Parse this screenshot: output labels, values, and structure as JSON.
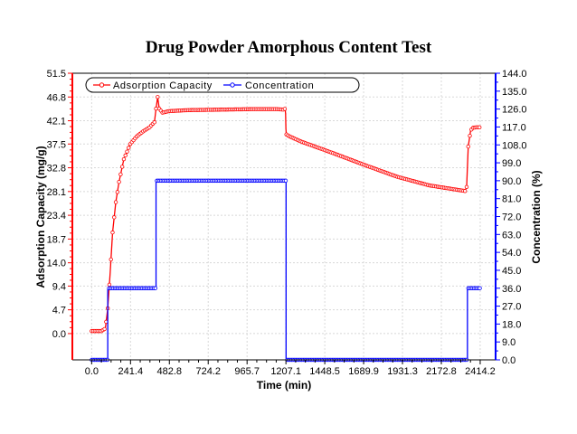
{
  "chart_data": {
    "type": "line",
    "title": "Drug Powder Amorphous Content Test",
    "xlabel": "Time (min)",
    "ylabel": "Adsorption Capacity (mg/g)",
    "y2label": "Concentration (%)",
    "x_ticks": [
      "0.0",
      "241.4",
      "482.8",
      "724.2",
      "965.7",
      "1207.1",
      "1448.5",
      "1689.9",
      "1931.3",
      "2172.8",
      "2414.2"
    ],
    "y_ticks": [
      "0.0",
      "4.7",
      "9.4",
      "14.0",
      "18.7",
      "23.4",
      "28.1",
      "32.8",
      "37.5",
      "42.1",
      "46.8",
      "51.5"
    ],
    "y2_ticks": [
      "0.0",
      "9.0",
      "18.0",
      "27.0",
      "36.0",
      "45.0",
      "54.0",
      "63.0",
      "72.0",
      "81.0",
      "90.0",
      "99.0",
      "108.0",
      "117.0",
      "126.0",
      "135.0",
      "144.0"
    ],
    "xlim": [
      -120,
      2510
    ],
    "ylim": [
      -5.2,
      51.5
    ],
    "y2lim": [
      0,
      144
    ],
    "grid": true,
    "legend_position": "top-left",
    "colors": {
      "adsorption": "#ff0000",
      "concentration": "#0000ff",
      "left_axis": "#ff0000",
      "right_axis": "#0000ff"
    },
    "series": [
      {
        "name": "Adsorption Capacity",
        "axis": "left",
        "x": [
          0,
          60,
          85,
          100,
          115,
          130,
          150,
          170,
          200,
          240,
          280,
          320,
          360,
          380,
          390,
          400,
          410,
          420,
          440,
          480,
          600,
          800,
          1000,
          1150,
          1195,
          1202,
          1205,
          1207,
          1210,
          1230,
          1300,
          1500,
          1700,
          1900,
          2100,
          2320,
          2330,
          2340,
          2355,
          2370,
          2390,
          2414
        ],
        "y": [
          0.5,
          0.5,
          1.0,
          5.0,
          12.0,
          20.0,
          26.0,
          30.0,
          34.5,
          37.5,
          39.0,
          40.0,
          40.8,
          41.5,
          41.8,
          44.5,
          46.8,
          44.5,
          43.7,
          44.0,
          44.2,
          44.3,
          44.4,
          44.4,
          44.3,
          44.5,
          43.5,
          40.5,
          39.4,
          39.0,
          38.0,
          35.7,
          33.3,
          31.0,
          29.3,
          28.2,
          29.0,
          37.0,
          40.2,
          40.7,
          40.8,
          40.8
        ]
      },
      {
        "name": "Concentration",
        "axis": "right",
        "x": [
          0,
          100,
          100,
          400,
          400,
          1208,
          1208,
          2335,
          2335,
          2414
        ],
        "y": [
          0,
          0,
          36,
          36,
          90,
          90,
          0,
          0,
          36,
          36
        ]
      }
    ]
  }
}
